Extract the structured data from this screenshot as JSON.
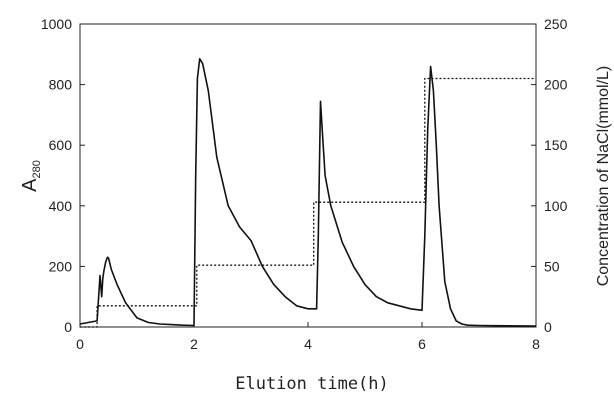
{
  "chart_data": {
    "type": "line",
    "xlabel": "Elution time(h)",
    "ylabel_main": "A",
    "ylabel_sub": "280",
    "y2label": "Concentration of NaCl(mmol/L)",
    "xlim": [
      0,
      8
    ],
    "ylim": [
      0,
      1000
    ],
    "y2lim": [
      0,
      250
    ],
    "xticks": [
      "0",
      "2",
      "4",
      "6",
      "8"
    ],
    "yticks": [
      "0",
      "200",
      "400",
      "600",
      "800",
      "1000"
    ],
    "y2ticks": [
      "0",
      "50",
      "100",
      "150",
      "200",
      "250"
    ],
    "grid": false,
    "series": [
      {
        "axis": "left",
        "style": "solid",
        "x": [
          0.0,
          0.3,
          0.35,
          0.38,
          0.4,
          0.42,
          0.45,
          0.48,
          0.5,
          0.55,
          0.65,
          0.8,
          1.0,
          1.2,
          1.4,
          1.6,
          1.8,
          2.0,
          2.03,
          2.06,
          2.1,
          2.15,
          2.25,
          2.4,
          2.6,
          2.8,
          3.0,
          3.2,
          3.4,
          3.6,
          3.8,
          4.0,
          4.15,
          4.18,
          4.22,
          4.26,
          4.3,
          4.4,
          4.6,
          4.8,
          5.0,
          5.2,
          5.4,
          5.6,
          5.8,
          6.0,
          6.05,
          6.1,
          6.15,
          6.2,
          6.25,
          6.3,
          6.4,
          6.5,
          6.6,
          6.7,
          6.8,
          7.0,
          7.5,
          8.0
        ],
        "y": [
          10,
          20,
          170,
          100,
          160,
          185,
          215,
          230,
          228,
          190,
          140,
          80,
          30,
          15,
          10,
          8,
          6,
          5,
          500,
          820,
          885,
          870,
          780,
          560,
          400,
          330,
          285,
          200,
          140,
          100,
          70,
          60,
          60,
          300,
          745,
          620,
          500,
          400,
          280,
          200,
          140,
          100,
          80,
          70,
          60,
          55,
          300,
          650,
          860,
          780,
          600,
          400,
          150,
          60,
          20,
          10,
          6,
          5,
          4,
          3
        ]
      },
      {
        "axis": "right",
        "style": "dotted",
        "x": [
          0.0,
          0.3,
          0.3,
          2.05,
          2.05,
          4.1,
          4.1,
          6.05,
          6.05,
          8.0
        ],
        "y": [
          0,
          0,
          17.5,
          17.5,
          51,
          51,
          103,
          103,
          205,
          205
        ]
      }
    ]
  }
}
